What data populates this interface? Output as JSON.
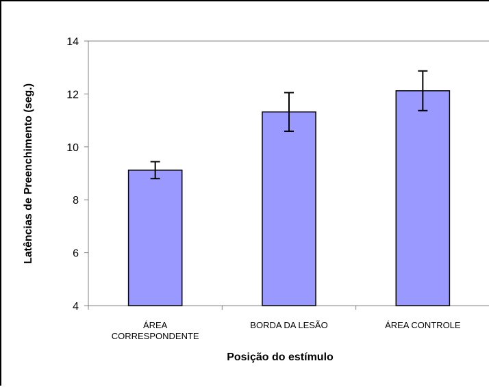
{
  "chart_data": {
    "type": "bar",
    "title": "",
    "xlabel": "Posição do estímulo",
    "ylabel": "Latências de Preenchimento (seg.)",
    "categories": [
      [
        "ÁREA",
        "CORRESPONDENTE"
      ],
      [
        "BORDA DA LESÃO"
      ],
      [
        "ÁREA CONTROLE"
      ]
    ],
    "series": [
      {
        "values": [
          9.12,
          11.32,
          12.12
        ],
        "error": [
          0.32,
          0.73,
          0.75
        ]
      }
    ],
    "ylim": [
      4,
      14
    ],
    "yticks": [
      4,
      6,
      8,
      10,
      12,
      14
    ],
    "grid": false,
    "legend": "none",
    "colors": {
      "bar_fill": "#9999ff",
      "bar_stroke": "#000000",
      "axis": "#808080",
      "error_bar": "#000000"
    }
  }
}
